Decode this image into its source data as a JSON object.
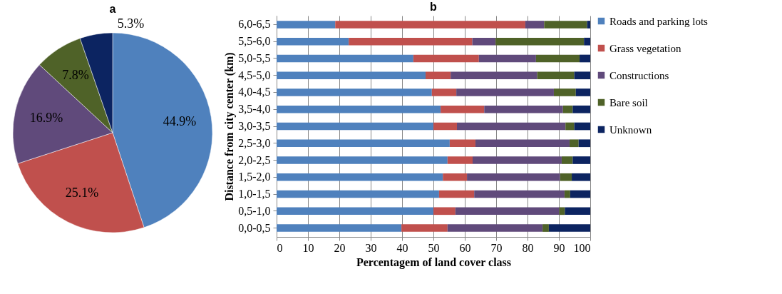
{
  "chart_data": [
    {
      "type": "pie",
      "title": "a",
      "categories": [
        null,
        null,
        null,
        null,
        null
      ],
      "values": [
        44.9,
        25.1,
        16.9,
        7.8,
        5.3
      ],
      "colors": [
        "#4f81bd",
        "#c0504d",
        "#604a7b",
        "#4f6228",
        "#0c2461"
      ],
      "value_labels": [
        "44.9%",
        "25.1%",
        "16.9%",
        "7.8%",
        "5.3%"
      ]
    },
    {
      "type": "bar",
      "orientation": "horizontal",
      "stacked": true,
      "title": "b",
      "xlabel": "Percentagem of land cover class",
      "ylabel": "Distance from city center (km)",
      "categories": [
        "6,0-6,5",
        "5,5-6,0",
        "5,0-5,5",
        "4,5-5,0",
        "4,0-4,5",
        "3,5-4,0",
        "3,0-3,5",
        "2,5-3,0",
        "2,0-2,5",
        "1,5-2,0",
        "1,0-1,5",
        "0,5-1,0",
        "0,0-0,5"
      ],
      "xlim": [
        0,
        100
      ],
      "xticks": [
        0,
        10,
        20,
        30,
        40,
        50,
        60,
        70,
        80,
        90,
        100
      ],
      "grid": "x",
      "legend": "right",
      "series": [
        {
          "name": "Roads and parking lots",
          "color": "#4f81bd",
          "values": [
            18.7,
            23.0,
            43.6,
            47.5,
            49.5,
            52.3,
            50.0,
            55.2,
            54.5,
            53.0,
            51.8,
            50.0,
            39.8
          ]
        },
        {
          "name": "Grass vegetation",
          "color": "#c0504d",
          "values": [
            60.6,
            39.4,
            20.9,
            8.0,
            7.8,
            13.9,
            7.5,
            8.2,
            8.0,
            7.7,
            11.2,
            7.0,
            14.7
          ]
        },
        {
          "name": "Constructions",
          "color": "#604a7b",
          "values": [
            6.0,
            7.4,
            18.2,
            27.6,
            31.1,
            25.1,
            34.6,
            30.0,
            28.4,
            29.7,
            28.8,
            33.1,
            30.3
          ]
        },
        {
          "name": "Bare soil",
          "color": "#4f6228",
          "values": [
            13.7,
            28.2,
            13.9,
            11.8,
            7.0,
            3.1,
            2.8,
            2.9,
            3.5,
            3.7,
            1.8,
            1.8,
            2.0
          ]
        },
        {
          "name": "Unknown",
          "color": "#0c2461",
          "values": [
            1.0,
            2.0,
            3.4,
            5.1,
            4.6,
            5.6,
            5.1,
            3.7,
            5.6,
            5.9,
            6.4,
            8.1,
            13.2
          ]
        }
      ]
    }
  ]
}
